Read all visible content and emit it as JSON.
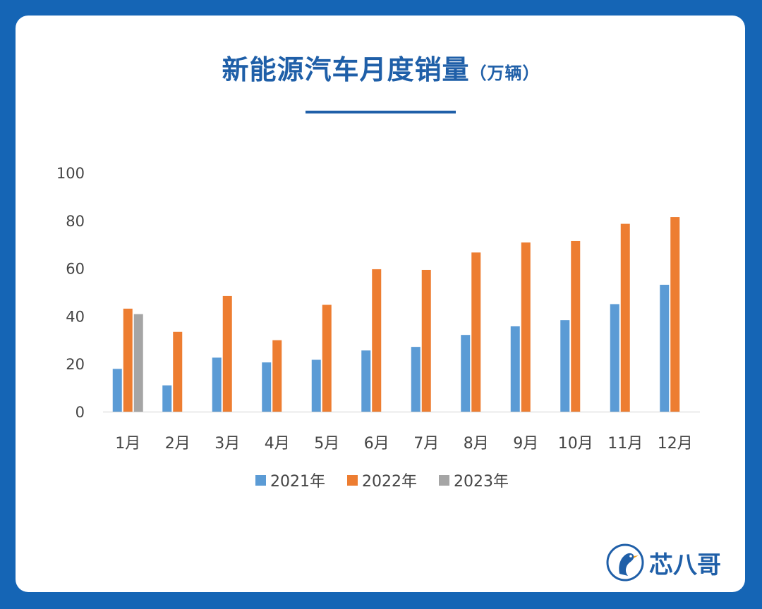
{
  "header": {
    "title": "新能源汽车月度销量",
    "unit": "（万辆）"
  },
  "brand": {
    "name": "芯八哥",
    "icon": "bird-logo-icon"
  },
  "colors": {
    "background": "#1565b5",
    "title": "#1f5fa8",
    "series_2021": "#5b9bd5",
    "series_2022": "#ed7d31",
    "series_2023": "#a5a5a5"
  },
  "chart_data": {
    "type": "bar",
    "categories": [
      "1月",
      "2月",
      "3月",
      "4月",
      "5月",
      "6月",
      "7月",
      "8月",
      "9月",
      "10月",
      "11月",
      "12月"
    ],
    "series": [
      {
        "name": "2021年",
        "values": [
          17.9,
          11.0,
          22.6,
          20.6,
          21.7,
          25.6,
          27.1,
          32.1,
          35.7,
          38.3,
          45.0,
          53.1
        ]
      },
      {
        "name": "2022年",
        "values": [
          43.1,
          33.4,
          48.4,
          29.9,
          44.7,
          59.6,
          59.3,
          66.6,
          70.8,
          71.4,
          78.6,
          81.4
        ]
      },
      {
        "name": "2023年",
        "values": [
          40.8,
          null,
          null,
          null,
          null,
          null,
          null,
          null,
          null,
          null,
          null,
          null
        ]
      }
    ],
    "yticks": [
      0,
      20,
      40,
      60,
      80,
      100
    ],
    "ylim": [
      0,
      100
    ],
    "grid": false,
    "legend": "bottom"
  }
}
